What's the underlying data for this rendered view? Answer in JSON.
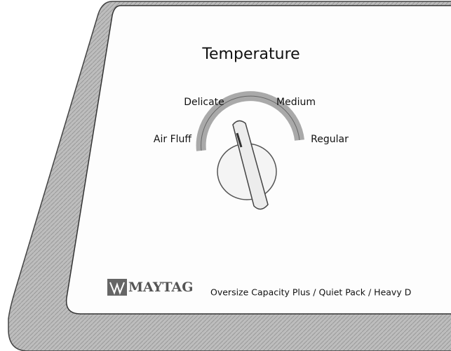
{
  "panel": {
    "title": "Temperature",
    "settings": [
      "Delicate",
      "Medium",
      "Air Fluff",
      "Regular"
    ],
    "brand": "MAYTAG",
    "footer": "Oversize Capacity Plus / Quiet Pack / Heavy D"
  }
}
